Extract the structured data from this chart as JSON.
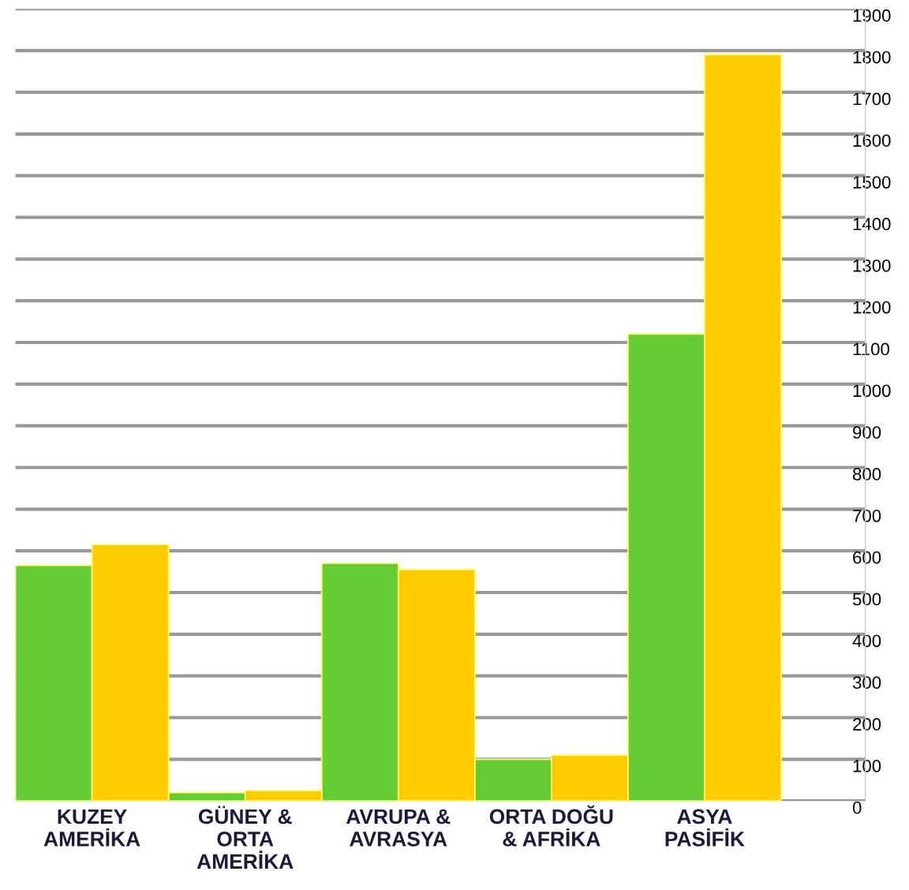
{
  "chart_data": {
    "type": "bar",
    "categories": [
      "KUZEY\nAMERİKA",
      "GÜNEY &\nORTA\nAMERİKA",
      "AVRUPA &\nAVRASYA",
      "ORTA DOĞU\n& AFRİKA",
      "ASYA\nPASİFİK"
    ],
    "series": [
      {
        "color": "#66cc33",
        "values": [
          565,
          20,
          570,
          100,
          1120
        ]
      },
      {
        "color": "#ffcc00",
        "values": [
          615,
          25,
          555,
          110,
          1790
        ]
      }
    ],
    "ylim": [
      0,
      1900
    ],
    "yticks": [
      0,
      100,
      200,
      300,
      400,
      500,
      600,
      700,
      800,
      900,
      1000,
      1100,
      1200,
      1300,
      1400,
      1500,
      1600,
      1700,
      1800,
      1900
    ],
    "grid": "y",
    "legend": false
  }
}
